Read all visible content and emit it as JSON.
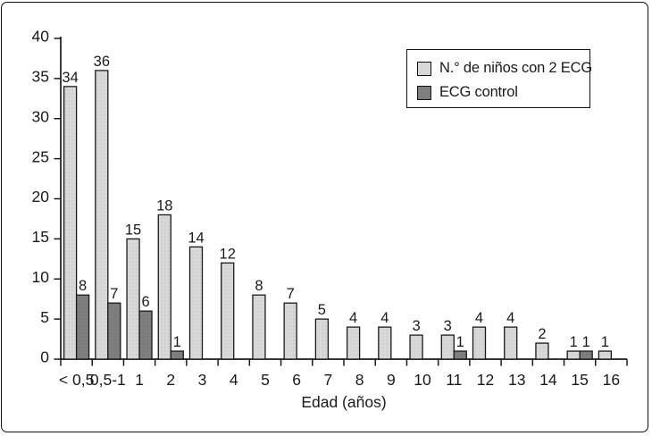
{
  "figure": {
    "background": "#ffffff",
    "frame_color": "#111111",
    "text_color": "#1a1a1a"
  },
  "chart_data": {
    "type": "bar",
    "title": "",
    "xlabel": "Edad (años)",
    "ylabel": "",
    "ylim": [
      0,
      40
    ],
    "ytick_step": 5,
    "yticks": [
      0,
      5,
      10,
      15,
      20,
      25,
      30,
      35,
      40
    ],
    "grid": false,
    "legend_position": "top-right",
    "bar_labels": true,
    "categories": [
      "< 0,5",
      "0,5-1",
      "1",
      "2",
      "3",
      "4",
      "5",
      "6",
      "7",
      "8",
      "9",
      "10",
      "11",
      "12",
      "13",
      "14",
      "15",
      "16"
    ],
    "series": [
      {
        "name": "N.° de niños con 2 ECG",
        "color": "#d8d8d8",
        "dot_color": "#c3c3c3",
        "values": [
          34,
          36,
          15,
          18,
          14,
          12,
          8,
          7,
          5,
          4,
          4,
          3,
          3,
          4,
          4,
          2,
          1,
          1
        ]
      },
      {
        "name": "ECG control",
        "color": "#7f7f7f",
        "dot_color": "#6c6c6c",
        "values": [
          8,
          7,
          6,
          1,
          0,
          0,
          0,
          0,
          0,
          0,
          0,
          0,
          1,
          0,
          0,
          0,
          1,
          0
        ]
      }
    ],
    "bar_stroke": "#1a1a1a",
    "axis_color": "#1a1a1a"
  }
}
